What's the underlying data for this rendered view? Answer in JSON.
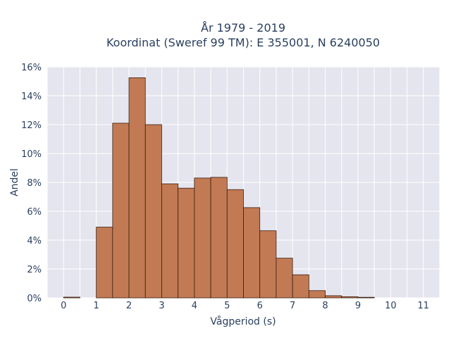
{
  "chart_data": {
    "type": "bar",
    "title_line1": "År 1979 - 2019",
    "title_line2": "Koordinat (Sweref 99 TM): E 355001, N 6240050",
    "xlabel": "Vågperiod (s)",
    "ylabel": "Andel",
    "bin_width": 0.5,
    "x": [
      0,
      1,
      1.5,
      2,
      2.5,
      3,
      3.5,
      4,
      4.5,
      5,
      5.5,
      6,
      6.5,
      7,
      7.5,
      8,
      8.5,
      9
    ],
    "values": [
      0.05,
      4.9,
      12.1,
      15.25,
      12.0,
      7.9,
      7.6,
      8.3,
      8.35,
      7.5,
      6.25,
      4.65,
      2.75,
      1.6,
      0.5,
      0.15,
      0.08,
      0.04
    ],
    "xlim": [
      -0.5,
      11.5
    ],
    "ylim": [
      0,
      16
    ],
    "x_ticks": [
      0,
      1,
      2,
      3,
      4,
      5,
      6,
      7,
      8,
      9,
      10,
      11
    ],
    "y_ticks": [
      0,
      2,
      4,
      6,
      8,
      10,
      12,
      14,
      16
    ],
    "y_tick_suffix": "%",
    "grid": true,
    "legend": false,
    "colors": {
      "bar_fill": "#c17a53",
      "bar_edge": "#3b1f0f",
      "plot_bg": "#e5e5ef",
      "grid": "#ffffff",
      "text": "#2a3f5f"
    }
  }
}
